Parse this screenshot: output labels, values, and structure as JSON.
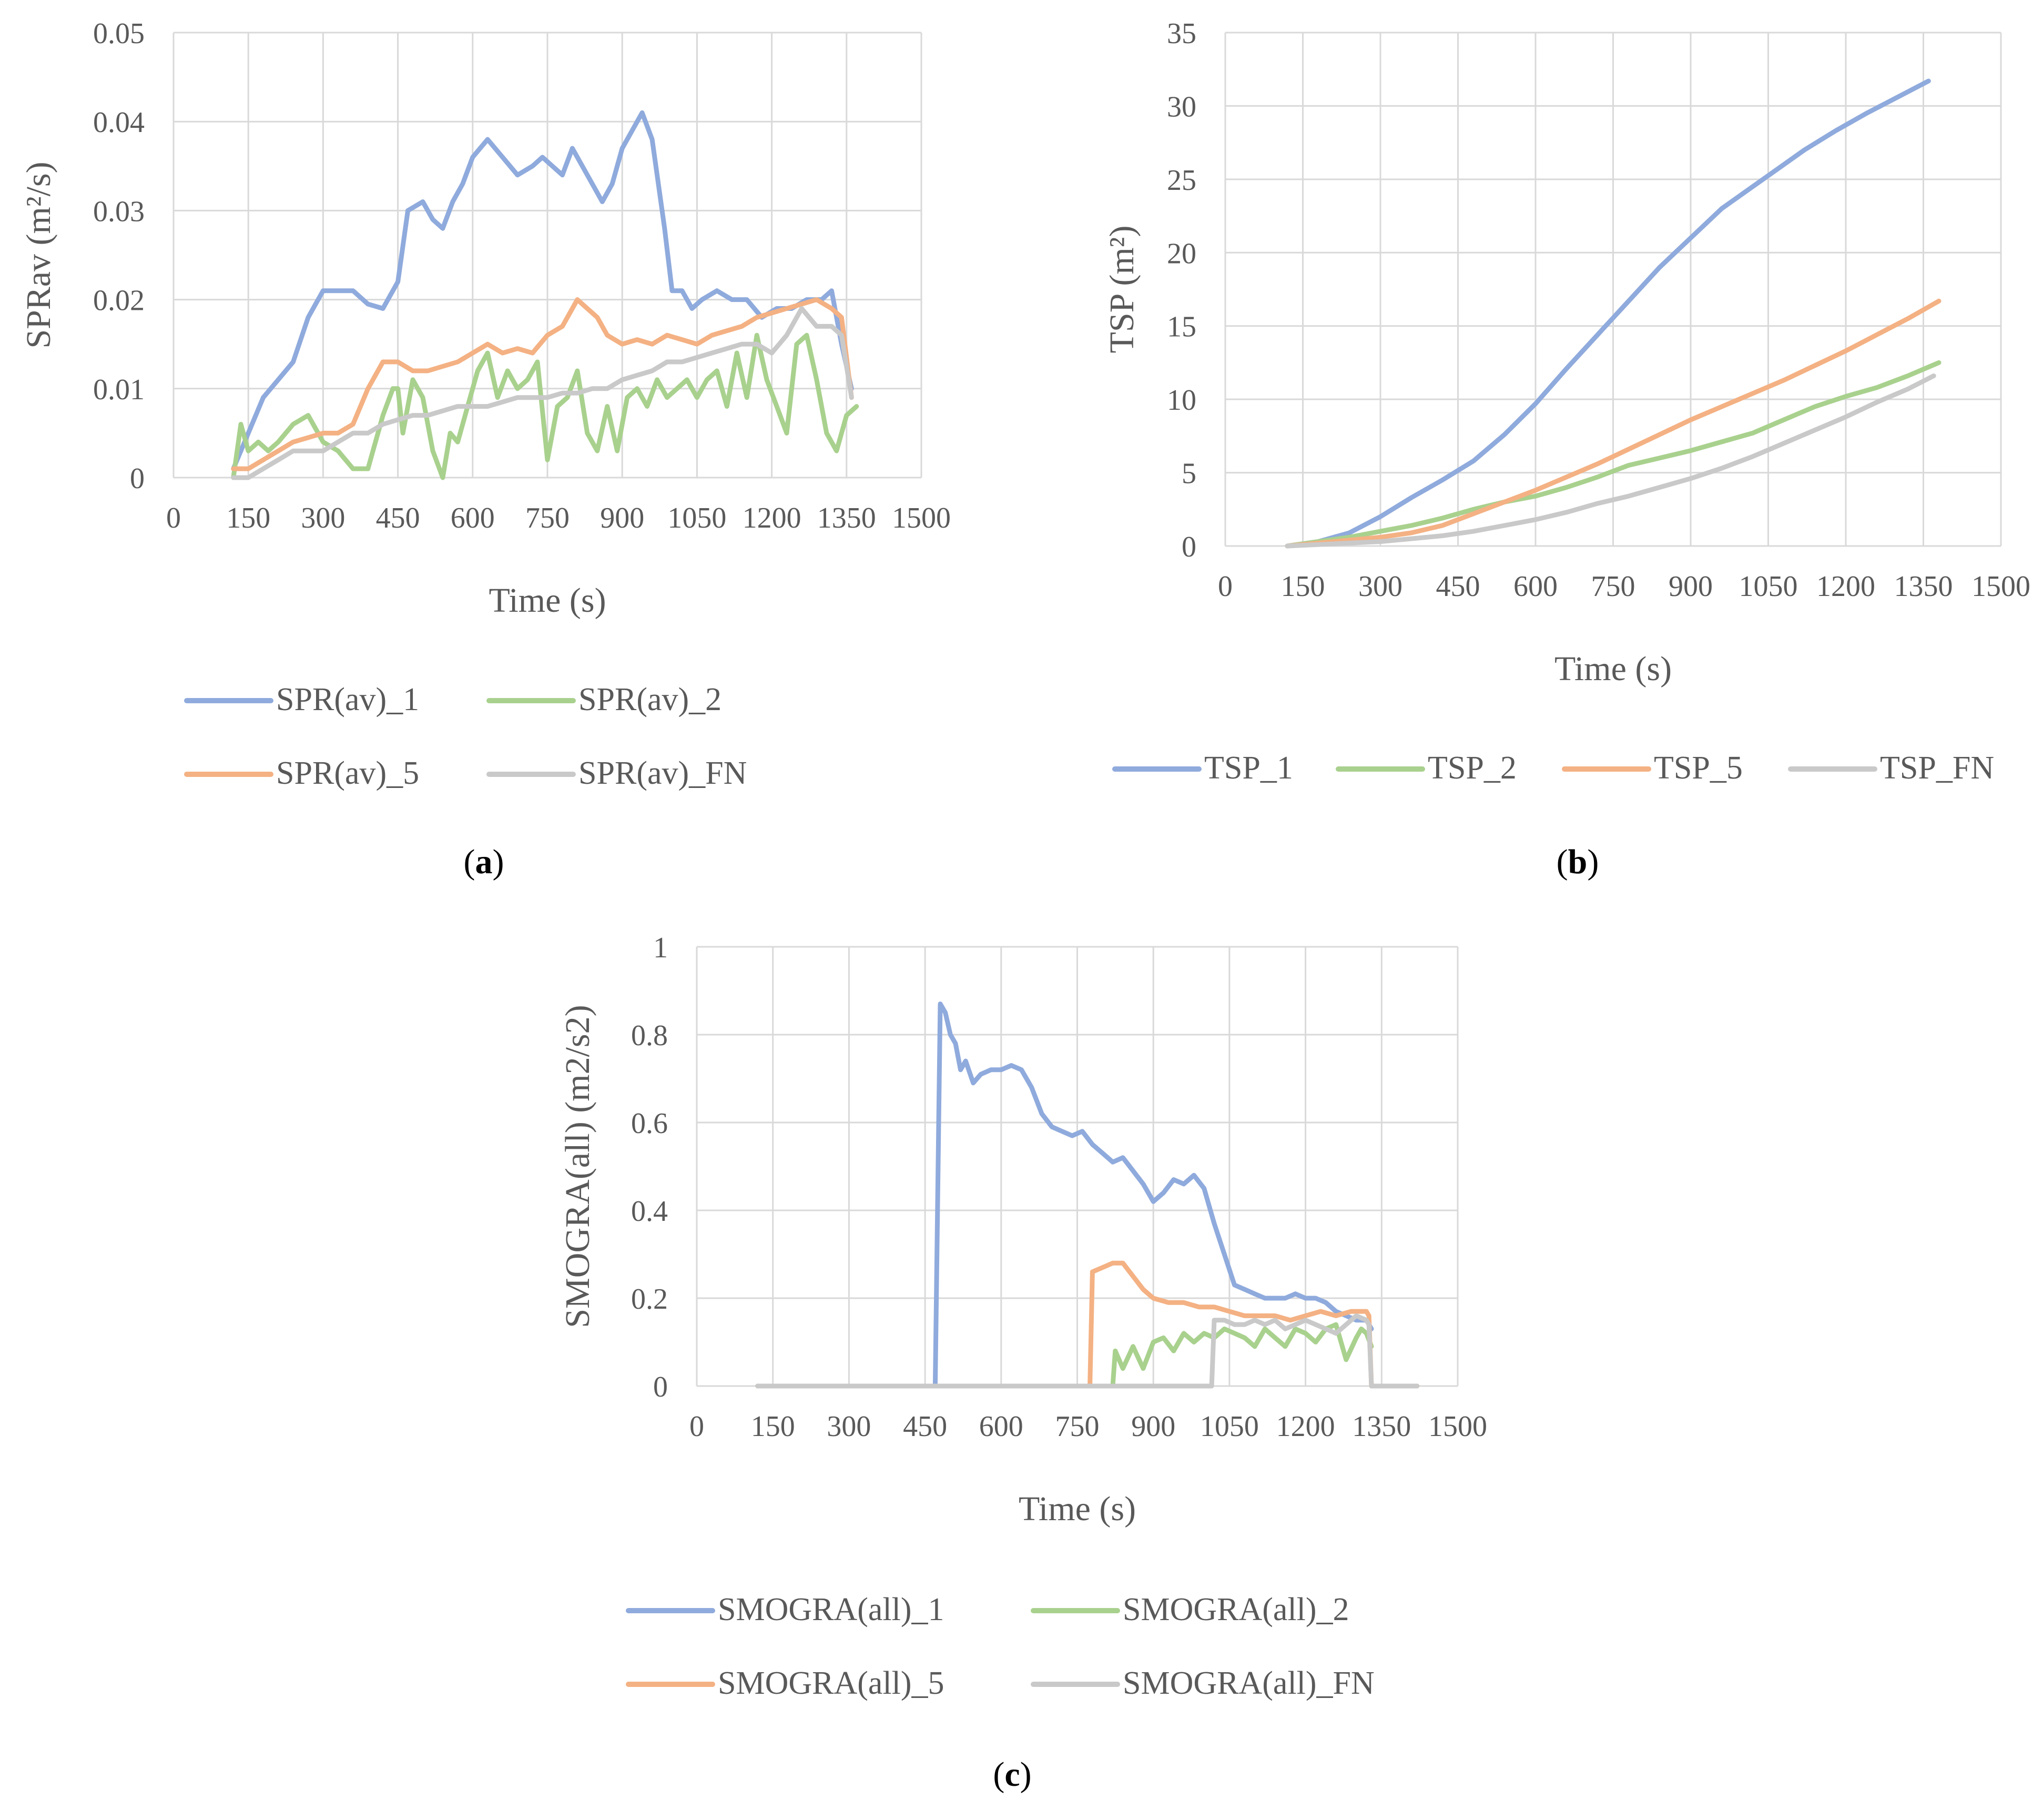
{
  "chart_data": [
    {
      "type": "line",
      "panel": "a",
      "caption": "(a)",
      "caption_letter": "a",
      "xlabel": "Time (s)",
      "ylabel": "SPRav (m²/s)",
      "xlim": [
        0,
        1500
      ],
      "ylim": [
        0,
        0.05
      ],
      "xticks": [
        0,
        150,
        300,
        450,
        600,
        750,
        900,
        1050,
        1200,
        1350,
        1500
      ],
      "xtick_labels": [
        "0",
        "150",
        "300",
        "450",
        "600",
        "750",
        "900",
        "1050",
        "1200",
        "1350",
        "1500"
      ],
      "yticks": [
        0,
        0.01,
        0.02,
        0.03,
        0.04,
        0.05
      ],
      "ytick_labels": [
        "0",
        "0.01",
        "0.02",
        "0.03",
        "0.04",
        "0.05"
      ],
      "grid": true,
      "legend_position": "bottom",
      "series": [
        {
          "name": "SPR(av)_1",
          "color": "#8faadc",
          "x": [
            120,
            150,
            180,
            210,
            240,
            270,
            300,
            330,
            360,
            390,
            420,
            430,
            450,
            470,
            500,
            520,
            540,
            560,
            580,
            600,
            630,
            660,
            690,
            720,
            740,
            760,
            780,
            800,
            820,
            840,
            860,
            880,
            900,
            920,
            940,
            960,
            970,
            985,
            1000,
            1020,
            1040,
            1060,
            1090,
            1120,
            1150,
            1180,
            1210,
            1240,
            1270,
            1300,
            1320,
            1340,
            1360
          ],
          "y": [
            0.001,
            0.005,
            0.009,
            0.011,
            0.013,
            0.018,
            0.021,
            0.021,
            0.021,
            0.0195,
            0.019,
            0.02,
            0.022,
            0.03,
            0.031,
            0.029,
            0.028,
            0.031,
            0.033,
            0.036,
            0.038,
            0.036,
            0.034,
            0.035,
            0.036,
            0.035,
            0.034,
            0.037,
            0.035,
            0.033,
            0.031,
            0.033,
            0.037,
            0.039,
            0.041,
            0.038,
            0.034,
            0.028,
            0.021,
            0.021,
            0.019,
            0.02,
            0.021,
            0.02,
            0.02,
            0.018,
            0.019,
            0.019,
            0.02,
            0.02,
            0.021,
            0.015,
            0.01
          ]
        },
        {
          "name": "SPR(av)_2",
          "color": "#a9d18e",
          "x": [
            120,
            135,
            150,
            170,
            190,
            210,
            240,
            270,
            300,
            330,
            360,
            390,
            420,
            440,
            450,
            460,
            480,
            500,
            520,
            540,
            555,
            570,
            590,
            610,
            630,
            650,
            670,
            690,
            710,
            730,
            750,
            770,
            790,
            810,
            830,
            850,
            870,
            890,
            910,
            930,
            950,
            970,
            990,
            1010,
            1030,
            1050,
            1070,
            1090,
            1110,
            1130,
            1150,
            1170,
            1190,
            1210,
            1230,
            1250,
            1270,
            1290,
            1310,
            1330,
            1350,
            1370
          ],
          "y": [
            0.0,
            0.006,
            0.003,
            0.004,
            0.003,
            0.004,
            0.006,
            0.007,
            0.004,
            0.003,
            0.001,
            0.001,
            0.007,
            0.01,
            0.01,
            0.005,
            0.011,
            0.009,
            0.003,
            0.0,
            0.005,
            0.004,
            0.008,
            0.012,
            0.014,
            0.009,
            0.012,
            0.01,
            0.011,
            0.013,
            0.002,
            0.008,
            0.009,
            0.012,
            0.005,
            0.003,
            0.008,
            0.003,
            0.009,
            0.01,
            0.008,
            0.011,
            0.009,
            0.01,
            0.011,
            0.009,
            0.011,
            0.012,
            0.008,
            0.014,
            0.009,
            0.016,
            0.011,
            0.008,
            0.005,
            0.015,
            0.016,
            0.011,
            0.005,
            0.003,
            0.007,
            0.008
          ]
        },
        {
          "name": "SPR(av)_5",
          "color": "#f4b183",
          "x": [
            120,
            150,
            180,
            210,
            240,
            270,
            300,
            330,
            360,
            390,
            420,
            450,
            480,
            510,
            540,
            570,
            600,
            630,
            660,
            690,
            720,
            750,
            780,
            800,
            810,
            830,
            850,
            870,
            900,
            930,
            960,
            990,
            1020,
            1050,
            1080,
            1110,
            1140,
            1170,
            1200,
            1230,
            1260,
            1290,
            1320,
            1340,
            1360
          ],
          "y": [
            0.001,
            0.001,
            0.002,
            0.003,
            0.004,
            0.0045,
            0.005,
            0.005,
            0.006,
            0.01,
            0.013,
            0.013,
            0.012,
            0.012,
            0.0125,
            0.013,
            0.014,
            0.015,
            0.014,
            0.0145,
            0.014,
            0.016,
            0.017,
            0.019,
            0.02,
            0.019,
            0.018,
            0.016,
            0.015,
            0.0155,
            0.015,
            0.016,
            0.0155,
            0.015,
            0.016,
            0.0165,
            0.017,
            0.018,
            0.0185,
            0.019,
            0.0195,
            0.02,
            0.019,
            0.018,
            0.009
          ]
        },
        {
          "name": "SPR(av)_FN",
          "color": "#c9c9c9",
          "x": [
            120,
            150,
            180,
            210,
            240,
            270,
            300,
            330,
            360,
            390,
            420,
            450,
            480,
            510,
            540,
            570,
            600,
            630,
            660,
            690,
            720,
            750,
            780,
            810,
            840,
            870,
            900,
            930,
            960,
            990,
            1020,
            1050,
            1080,
            1110,
            1140,
            1170,
            1200,
            1230,
            1260,
            1290,
            1320,
            1340,
            1360
          ],
          "y": [
            0.0,
            0.0,
            0.001,
            0.002,
            0.003,
            0.003,
            0.003,
            0.004,
            0.005,
            0.005,
            0.006,
            0.0065,
            0.007,
            0.007,
            0.0075,
            0.008,
            0.008,
            0.008,
            0.0085,
            0.009,
            0.009,
            0.009,
            0.0095,
            0.0095,
            0.01,
            0.01,
            0.011,
            0.0115,
            0.012,
            0.013,
            0.013,
            0.0135,
            0.014,
            0.0145,
            0.015,
            0.015,
            0.014,
            0.016,
            0.019,
            0.017,
            0.017,
            0.016,
            0.009
          ]
        }
      ]
    },
    {
      "type": "line",
      "panel": "b",
      "caption": "(b)",
      "caption_letter": "b",
      "xlabel": "Time (s)",
      "ylabel": "TSP (m²)",
      "xlim": [
        0,
        1500
      ],
      "ylim": [
        0,
        35
      ],
      "xticks": [
        0,
        150,
        300,
        450,
        600,
        750,
        900,
        1050,
        1200,
        1350,
        1500
      ],
      "xtick_labels": [
        "0",
        "150",
        "300",
        "450",
        "600",
        "750",
        "900",
        "1050",
        "1200",
        "1350",
        "1500"
      ],
      "yticks": [
        0,
        5,
        10,
        15,
        20,
        25,
        30,
        35
      ],
      "ytick_labels": [
        "0",
        "5",
        "10",
        "15",
        "20",
        "25",
        "30",
        "35"
      ],
      "grid": true,
      "legend_position": "bottom",
      "series": [
        {
          "name": "TSP_1",
          "color": "#8faadc",
          "x": [
            120,
            180,
            240,
            300,
            360,
            420,
            480,
            540,
            600,
            660,
            720,
            780,
            840,
            900,
            960,
            1000,
            1060,
            1120,
            1180,
            1240,
            1300,
            1360
          ],
          "y": [
            0.0,
            0.3,
            0.9,
            2.0,
            3.3,
            4.5,
            5.8,
            7.6,
            9.7,
            12.1,
            14.4,
            16.7,
            19.0,
            21.0,
            23.0,
            24.0,
            25.5,
            27.0,
            28.3,
            29.5,
            30.6,
            31.7
          ]
        },
        {
          "name": "TSP_2",
          "color": "#a9d18e",
          "x": [
            120,
            180,
            240,
            300,
            360,
            420,
            480,
            540,
            600,
            660,
            720,
            780,
            840,
            900,
            960,
            1020,
            1080,
            1140,
            1200,
            1260,
            1320,
            1380
          ],
          "y": [
            0.0,
            0.3,
            0.6,
            1.0,
            1.4,
            1.9,
            2.5,
            3.0,
            3.4,
            4.0,
            4.7,
            5.5,
            6.0,
            6.5,
            7.1,
            7.7,
            8.6,
            9.5,
            10.2,
            10.8,
            11.6,
            12.5
          ]
        },
        {
          "name": "TSP_5",
          "color": "#f4b183",
          "x": [
            120,
            180,
            240,
            300,
            360,
            420,
            480,
            540,
            600,
            660,
            720,
            780,
            840,
            900,
            960,
            1020,
            1080,
            1140,
            1200,
            1260,
            1320,
            1380
          ],
          "y": [
            0.0,
            0.2,
            0.4,
            0.6,
            0.9,
            1.4,
            2.2,
            3.0,
            3.8,
            4.7,
            5.6,
            6.6,
            7.6,
            8.6,
            9.5,
            10.4,
            11.3,
            12.3,
            13.3,
            14.4,
            15.5,
            16.7
          ]
        },
        {
          "name": "TSP_FN",
          "color": "#c9c9c9",
          "x": [
            120,
            180,
            240,
            300,
            360,
            420,
            480,
            540,
            600,
            660,
            720,
            780,
            840,
            900,
            960,
            1020,
            1080,
            1140,
            1200,
            1260,
            1320,
            1370
          ],
          "y": [
            0.0,
            0.1,
            0.2,
            0.3,
            0.5,
            0.7,
            1.0,
            1.4,
            1.8,
            2.3,
            2.9,
            3.4,
            4.0,
            4.6,
            5.3,
            6.1,
            7.0,
            7.9,
            8.8,
            9.8,
            10.7,
            11.6
          ]
        }
      ]
    },
    {
      "type": "line",
      "panel": "c",
      "caption": "(c)",
      "caption_letter": "c",
      "xlabel": "Time (s)",
      "ylabel": "SMOGRA(all) (m2/s2)",
      "xlim": [
        0,
        1500
      ],
      "ylim": [
        0,
        1
      ],
      "xticks": [
        0,
        150,
        300,
        450,
        600,
        750,
        900,
        1050,
        1200,
        1350,
        1500
      ],
      "xtick_labels": [
        "0",
        "150",
        "300",
        "450",
        "600",
        "750",
        "900",
        "1050",
        "1200",
        "1350",
        "1500"
      ],
      "yticks": [
        0,
        0.2,
        0.4,
        0.6,
        0.8,
        1
      ],
      "ytick_labels": [
        "0",
        "0.2",
        "0.4",
        "0.6",
        "0.8",
        "1"
      ],
      "grid": true,
      "legend_position": "bottom",
      "series": [
        {
          "name": "SMOGRA(all)_1",
          "color": "#8faadc",
          "x": [
            120,
            470,
            480,
            490,
            500,
            510,
            520,
            530,
            545,
            560,
            580,
            600,
            620,
            640,
            660,
            680,
            700,
            720,
            740,
            760,
            780,
            800,
            820,
            840,
            860,
            880,
            900,
            920,
            940,
            960,
            980,
            1000,
            1020,
            1040,
            1060,
            1080,
            1100,
            1120,
            1140,
            1160,
            1180,
            1200,
            1220,
            1240,
            1260,
            1280,
            1300,
            1320,
            1330
          ],
          "y": [
            0.0,
            0.0,
            0.87,
            0.85,
            0.8,
            0.78,
            0.72,
            0.74,
            0.69,
            0.71,
            0.72,
            0.72,
            0.73,
            0.72,
            0.68,
            0.62,
            0.59,
            0.58,
            0.57,
            0.58,
            0.55,
            0.53,
            0.51,
            0.52,
            0.49,
            0.46,
            0.42,
            0.44,
            0.47,
            0.46,
            0.48,
            0.45,
            0.37,
            0.3,
            0.23,
            0.22,
            0.21,
            0.2,
            0.2,
            0.2,
            0.21,
            0.2,
            0.2,
            0.19,
            0.17,
            0.16,
            0.15,
            0.15,
            0.13
          ]
        },
        {
          "name": "SMOGRA(all)_2",
          "color": "#a9d18e",
          "x": [
            120,
            820,
            825,
            840,
            860,
            880,
            900,
            920,
            940,
            960,
            980,
            1000,
            1020,
            1040,
            1060,
            1080,
            1100,
            1120,
            1140,
            1160,
            1180,
            1200,
            1220,
            1240,
            1260,
            1280,
            1300,
            1310,
            1320,
            1330
          ],
          "y": [
            0.0,
            0.0,
            0.08,
            0.04,
            0.09,
            0.04,
            0.1,
            0.11,
            0.08,
            0.12,
            0.1,
            0.12,
            0.11,
            0.13,
            0.12,
            0.11,
            0.09,
            0.13,
            0.11,
            0.09,
            0.13,
            0.12,
            0.1,
            0.13,
            0.14,
            0.06,
            0.11,
            0.13,
            0.12,
            0.09
          ]
        },
        {
          "name": "SMOGRA(all)_5",
          "color": "#f4b183",
          "x": [
            120,
            775,
            780,
            800,
            820,
            840,
            860,
            880,
            900,
            930,
            960,
            990,
            1020,
            1050,
            1080,
            1110,
            1140,
            1170,
            1200,
            1230,
            1260,
            1290,
            1320,
            1325,
            1330,
            1420
          ],
          "y": [
            0.0,
            0.0,
            0.26,
            0.27,
            0.28,
            0.28,
            0.25,
            0.22,
            0.2,
            0.19,
            0.19,
            0.18,
            0.18,
            0.17,
            0.16,
            0.16,
            0.16,
            0.15,
            0.16,
            0.17,
            0.16,
            0.17,
            0.17,
            0.16,
            0.0,
            0.0
          ]
        },
        {
          "name": "SMOGRA(all)_FN",
          "color": "#c9c9c9",
          "x": [
            120,
            1015,
            1020,
            1040,
            1060,
            1080,
            1100,
            1120,
            1140,
            1160,
            1180,
            1200,
            1220,
            1240,
            1260,
            1280,
            1300,
            1320,
            1325,
            1330,
            1420
          ],
          "y": [
            0.0,
            0.0,
            0.15,
            0.15,
            0.14,
            0.14,
            0.15,
            0.14,
            0.15,
            0.13,
            0.14,
            0.15,
            0.14,
            0.13,
            0.12,
            0.14,
            0.16,
            0.15,
            0.14,
            0.0,
            0.0
          ]
        }
      ]
    }
  ]
}
